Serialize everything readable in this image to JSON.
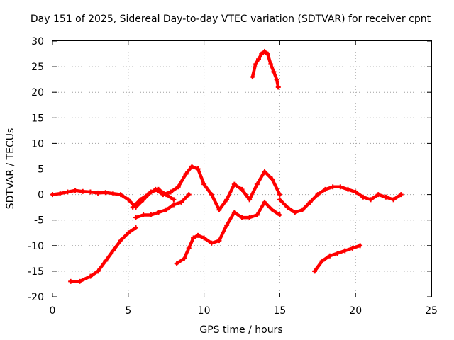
{
  "chart_data": {
    "type": "scatter",
    "title": "Day 151 of 2025, Sidereal Day-to-day VTEC variation (SDTVAR) for receiver cpnt",
    "xlabel": "GPS time / hours",
    "ylabel": "SDTVAR / TECUs",
    "xlim": [
      0,
      25
    ],
    "ylim": [
      -20,
      30
    ],
    "xticks": [
      "0",
      "5",
      "10",
      "15",
      "20",
      "25"
    ],
    "yticks": [
      "-20",
      "-15",
      "-10",
      "-5",
      "0",
      "5",
      "10",
      "15",
      "20",
      "25",
      "30"
    ],
    "grid": true,
    "marker_color": "#ff0000",
    "series": [
      {
        "name": "arc-main-1",
        "x": [
          0,
          0.5,
          1,
          1.5,
          2,
          2.5,
          3,
          3.5,
          4,
          4.5,
          5,
          5.5,
          6,
          6.5,
          7,
          7.5,
          8
        ],
        "y": [
          0,
          0.2,
          0.5,
          0.8,
          0.6,
          0.5,
          0.3,
          0.4,
          0.2,
          0,
          -1,
          -2.5,
          -1,
          0.5,
          1,
          0,
          -1
        ]
      },
      {
        "name": "arc-main-2",
        "x": [
          5.3,
          5.8,
          6.3,
          6.8,
          7.3,
          7.8,
          8.3,
          8.8,
          9.2,
          9.6,
          10,
          10.5,
          11,
          11.5,
          12,
          12.5,
          13,
          13.5,
          14,
          14.5,
          15
        ],
        "y": [
          -2.5,
          -1,
          0,
          1,
          0,
          0.5,
          1.5,
          4,
          5.5,
          5,
          2,
          0,
          -3,
          -1,
          2,
          1,
          -1,
          2,
          4.5,
          3,
          0
        ]
      },
      {
        "name": "arc-main-3",
        "x": [
          15,
          15.5,
          16,
          16.5,
          17,
          17.5,
          18,
          18.5,
          19,
          19.5,
          20,
          20.5,
          21,
          21.5,
          22,
          22.5,
          23
        ],
        "y": [
          -1,
          -2.5,
          -3.5,
          -3,
          -1.5,
          0,
          1,
          1.5,
          1.5,
          1,
          0.5,
          -0.5,
          -1,
          0,
          -0.5,
          -1,
          0
        ]
      },
      {
        "name": "arc-lower-1",
        "x": [
          1.2,
          1.8,
          2.5,
          3,
          3.5,
          4,
          4.5,
          5,
          5.5
        ],
        "y": [
          -17,
          -17,
          -16,
          -15,
          -13,
          -11,
          -9,
          -7.5,
          -6.5
        ]
      },
      {
        "name": "arc-lower-2",
        "x": [
          5.5,
          6,
          6.5,
          7,
          7.5,
          8,
          8.5,
          9
        ],
        "y": [
          -4.5,
          -4,
          -4,
          -3.5,
          -3,
          -2,
          -1.5,
          0
        ]
      },
      {
        "name": "arc-lower-3",
        "x": [
          8.2,
          8.7,
          9,
          9.3,
          9.6,
          10,
          10.5,
          11,
          11.5,
          12,
          12.5,
          13,
          13.5,
          14,
          14.5,
          15
        ],
        "y": [
          -13.5,
          -12.5,
          -10.5,
          -8.5,
          -8,
          -8.5,
          -9.5,
          -9,
          -6,
          -3.5,
          -4.5,
          -4.5,
          -4,
          -1.5,
          -3,
          -4
        ]
      },
      {
        "name": "arc-lower-4",
        "x": [
          17.3,
          17.8,
          18.3,
          18.8,
          19.3,
          19.8,
          20.3
        ],
        "y": [
          -15,
          -13,
          -12,
          -11.5,
          -11,
          -10.5,
          -10
        ]
      },
      {
        "name": "arc-upper",
        "x": [
          13.2,
          13.4,
          13.6,
          13.8,
          14,
          14.2,
          14.4,
          14.6,
          14.8,
          14.9
        ],
        "y": [
          23,
          25.5,
          26.5,
          27.5,
          28,
          27.5,
          25.5,
          24,
          22.5,
          21
        ]
      }
    ]
  }
}
